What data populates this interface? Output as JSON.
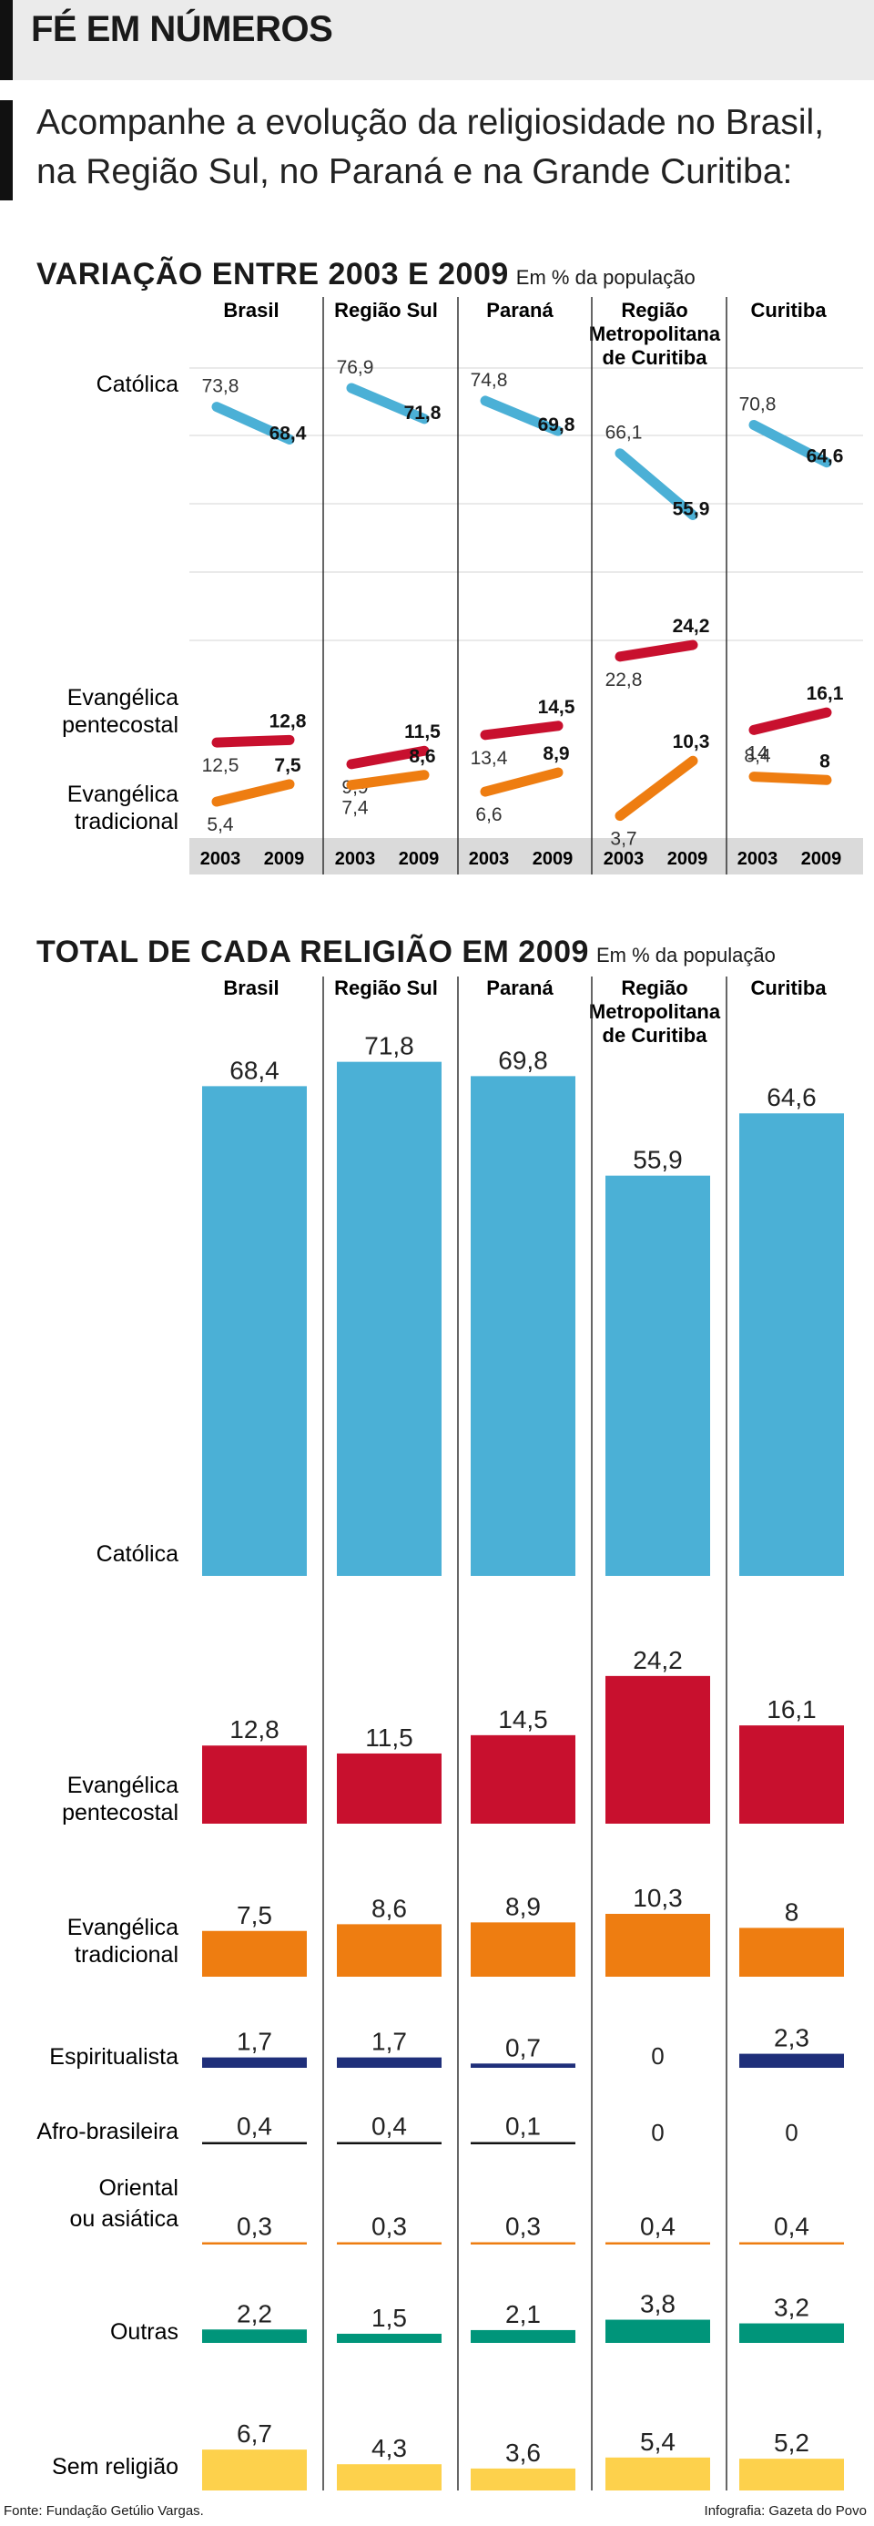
{
  "header": {
    "title": "FÉ EM NÚMEROS"
  },
  "intro": "Acompanhe a evolução da religiosidade no Brasil, na Região Sul, no Paraná e na Grande Curitiba:",
  "section1": {
    "title": "VARIAÇÃO ENTRE 2003 E 2009",
    "subtitle": "Em % da população"
  },
  "section2": {
    "title": "TOTAL DE CADA RELIGIÃO EM 2009",
    "subtitle": "Em % da população"
  },
  "regions": [
    {
      "lines": [
        "Brasil"
      ]
    },
    {
      "lines": [
        "Região Sul"
      ]
    },
    {
      "lines": [
        "Paraná"
      ]
    },
    {
      "lines": [
        "Região",
        "Metropolitana",
        "de Curitiba"
      ]
    },
    {
      "lines": [
        "Curitiba"
      ]
    }
  ],
  "years": [
    "2003",
    "2009"
  ],
  "footer": {
    "source": "Fonte: Fundação Getúlio Vargas.",
    "credit": "Infografia: Gazeta do Povo"
  },
  "chart_data": [
    {
      "type": "line",
      "title": "VARIAÇÃO ENTRE 2003 E 2009",
      "subtitle": "Em % da população",
      "x": [
        "2003",
        "2009"
      ],
      "panels": [
        "Brasil",
        "Região Sul",
        "Paraná",
        "Região Metropolitana de Curitiba",
        "Curitiba"
      ],
      "series": [
        {
          "name": "Católica",
          "color": "#4bb0d6",
          "values": [
            [
              73.8,
              68.4
            ],
            [
              76.9,
              71.8
            ],
            [
              74.8,
              69.8
            ],
            [
              66.1,
              55.9
            ],
            [
              70.8,
              64.6
            ]
          ]
        },
        {
          "name": "Evangélica pentecostal",
          "color": "#c8102e",
          "values": [
            [
              12.5,
              12.8
            ],
            [
              9.9,
              11.5
            ],
            [
              13.4,
              14.5
            ],
            [
              22.8,
              24.2
            ],
            [
              14.0,
              16.1
            ]
          ]
        },
        {
          "name": "Evangélica tradicional",
          "color": "#ee7d11",
          "values": [
            [
              5.4,
              7.5
            ],
            [
              7.4,
              8.6
            ],
            [
              6.6,
              8.9
            ],
            [
              3.7,
              10.3
            ],
            [
              8.4,
              8.0
            ]
          ]
        }
      ]
    },
    {
      "type": "bar",
      "title": "TOTAL DE CADA RELIGIÃO EM 2009",
      "subtitle": "Em % da população",
      "categories": [
        "Brasil",
        "Região Sul",
        "Paraná",
        "Região Metropolitana de Curitiba",
        "Curitiba"
      ],
      "series": [
        {
          "name": "Católica",
          "color": "#4bb0d6",
          "values": [
            68.4,
            71.8,
            69.8,
            55.9,
            64.6
          ]
        },
        {
          "name": "Evangélica pentecostal",
          "color": "#c8102e",
          "values": [
            12.8,
            11.5,
            14.5,
            24.2,
            16.1
          ]
        },
        {
          "name": "Evangélica tradicional",
          "color": "#ee7d11",
          "values": [
            7.5,
            8.6,
            8.9,
            10.3,
            8.0
          ]
        },
        {
          "name": "Espiritualista",
          "color": "#1f2f7a",
          "values": [
            1.7,
            1.7,
            0.7,
            0,
            2.3
          ]
        },
        {
          "name": "Afro-brasileira",
          "color": "#111111",
          "values": [
            0.4,
            0.4,
            0.1,
            0,
            0
          ]
        },
        {
          "name": "Oriental ou asiática",
          "color": "#ee7d11",
          "values": [
            0.3,
            0.3,
            0.3,
            0.4,
            0.4
          ]
        },
        {
          "name": "Outras",
          "color": "#00957a",
          "values": [
            2.2,
            1.5,
            2.1,
            3.8,
            3.2
          ]
        },
        {
          "name": "Sem religião",
          "color": "#fdd14c",
          "values": [
            6.7,
            4.3,
            3.6,
            5.4,
            5.2
          ]
        }
      ]
    }
  ]
}
